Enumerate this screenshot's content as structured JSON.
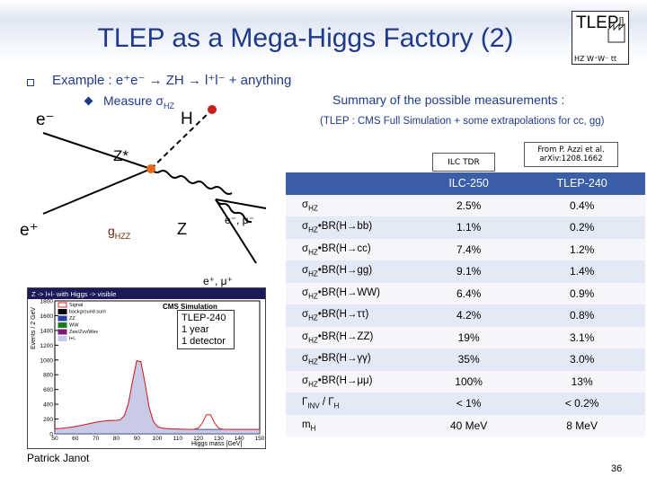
{
  "title": "TLEP as a Mega-Higgs Factory (2)",
  "logo": {
    "text": "TLEP",
    "subtext": "HZ W⁺W⁻ tt"
  },
  "example": "Example :  e⁺e⁻ → ZH → l⁺l⁻ + anything",
  "measure": "Measure σ",
  "measure_sub": "HZ",
  "diagram": {
    "e_minus": "e⁻",
    "e_plus": "e⁺",
    "h": "H",
    "zstar": "Z*",
    "coupling": "g",
    "coupling_sub": "HZZ",
    "z": "Z",
    "lepton_minus": "e⁻, μ⁻",
    "lepton_plus": "e⁺, μ⁺"
  },
  "summary": {
    "title": "Summary of the possible measurements :",
    "subtitle": "(TLEP : CMS Full Simulation + some extrapolations for cc, gg)"
  },
  "sources": {
    "ilc": "ILC TDR",
    "tlep_ref": "From P. Azzi et al. arXiv:1208.1662"
  },
  "table": {
    "headers": [
      "",
      "ILC-250",
      "TLEP-240"
    ],
    "rows": [
      {
        "m": "σ",
        "sub": "HZ",
        "rest": "",
        "ilc": "2.5%",
        "tlep": "0.4%"
      },
      {
        "m": "σ",
        "sub": "HZ",
        "rest": "•BR(H→bb)",
        "ilc": "1.1%",
        "tlep": "0.2%"
      },
      {
        "m": "σ",
        "sub": "HZ",
        "rest": "•BR(H→cc)",
        "ilc": "7.4%",
        "tlep": "1.2%"
      },
      {
        "m": "σ",
        "sub": "HZ",
        "rest": "•BR(H→gg)",
        "ilc": "9.1%",
        "tlep": "1.4%"
      },
      {
        "m": "σ",
        "sub": "HZ",
        "rest": "•BR(H→WW)",
        "ilc": "6.4%",
        "tlep": "0.9%"
      },
      {
        "m": "σ",
        "sub": "HZ",
        "rest": "•BR(H→ττ)",
        "ilc": "4.2%",
        "tlep": "0.8%"
      },
      {
        "m": "σ",
        "sub": "HZ",
        "rest": "•BR(H→ZZ)",
        "ilc": "19%",
        "tlep": "3.1%"
      },
      {
        "m": "σ",
        "sub": "HZ",
        "rest": "•BR(H→γγ)",
        "ilc": "35%",
        "tlep": "3.0%"
      },
      {
        "m": "σ",
        "sub": "HZ",
        "rest": "•BR(H→μμ)",
        "ilc": "100%",
        "tlep": "13%"
      },
      {
        "m": "Γ",
        "sub": "INV",
        "rest": " / Γ",
        "rest_sub": "H",
        "ilc": "< 1%",
        "tlep": "< 0.2%"
      },
      {
        "m": "m",
        "sub": "H",
        "rest": "",
        "ilc": "40 MeV",
        "tlep": "8 MeV"
      }
    ]
  },
  "plot": {
    "header": "Z -> l+l- with Higgs -> visible",
    "sim_label": "CMS Simulation",
    "annotation": [
      "TLEP-240",
      "1 year",
      "1 detector"
    ],
    "legend": [
      "Signal",
      "background sum",
      "ZZ",
      "WW",
      "Zee/Zvv/Wev",
      "l+l-"
    ],
    "ylabel": "Events / 2 GeV",
    "xlabel": "Higgs mass [GeV]",
    "yticks": [
      "1800",
      "1600",
      "1400",
      "1200",
      "1000",
      "800",
      "600",
      "400",
      "200",
      "0"
    ],
    "xticks": [
      "50",
      "60",
      "70",
      "80",
      "90",
      "100",
      "110",
      "120",
      "130",
      "140",
      "150"
    ]
  },
  "footer": "Patrick Janot",
  "page_number": "36"
}
